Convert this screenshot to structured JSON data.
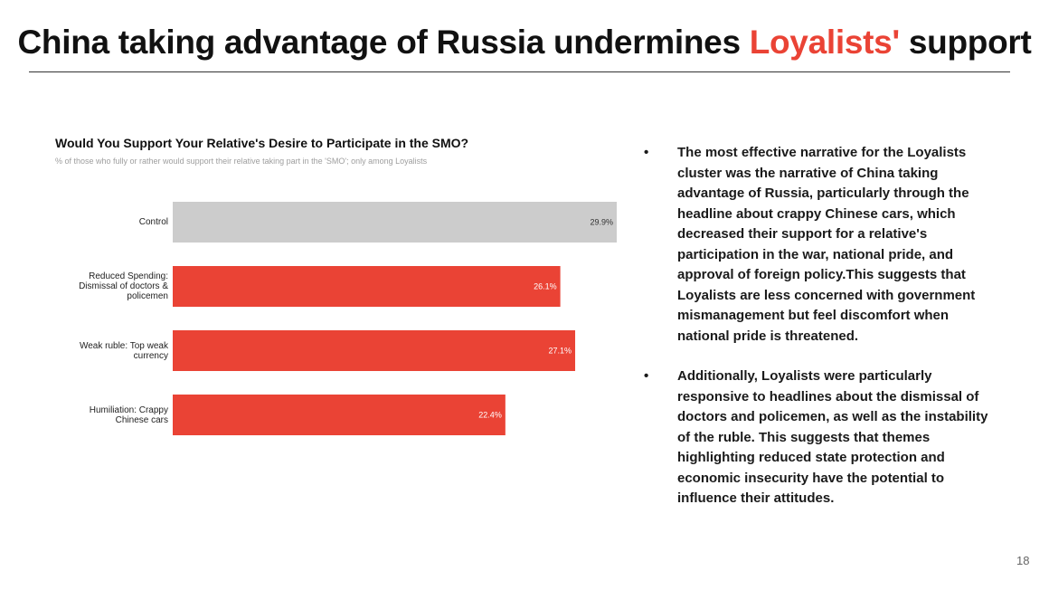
{
  "slide": {
    "title_prefix": "China taking advantage of Russia undermines ",
    "title_highlight": "Loyalists'",
    "title_suffix": " support",
    "page_number": "18",
    "bullets": [
      "The most effective narrative for the Loyalists cluster was the narrative of China taking advantage of Russia, particularly through the headline about crappy Chinese cars, which decreased their support for a relative's participation in the war, national pride, and approval of foreign policy.This suggests that Loyalists are less concerned with government mismanagement but feel discomfort when national pride is threatened.",
      "Additionally, Loyalists were particularly responsive to headlines about the dismissal of doctors and policemen, as well as the instability of the ruble. This suggests that themes highlighting reduced state protection and economic insecurity have the potential to influence their attitudes."
    ]
  },
  "colors": {
    "accent": "#ea4335",
    "control_bar": "#cccccc",
    "treatment_bar": "#ea4335"
  },
  "chart_data": {
    "type": "bar",
    "orientation": "horizontal",
    "title": "Would You Support Your Relative's Desire to Participate in the SMO?",
    "subtitle": "% of those who fully or rather would support their relative taking part in the 'SMO'; only among Loyalists",
    "categories": [
      "Control",
      "Reduced Spending: Dismissal of doctors & policemen",
      "Weak ruble: Top weak currency",
      "Humiliation: Crappy Chinese cars"
    ],
    "category_lines": [
      [
        "Control"
      ],
      [
        "Reduced Spending:",
        "Dismissal of doctors &",
        "policemen"
      ],
      [
        "Weak ruble: Top weak",
        "currency"
      ],
      [
        "Humiliation: Crappy",
        "Chinese cars"
      ]
    ],
    "values": [
      29.9,
      26.1,
      27.1,
      22.4
    ],
    "data_labels": [
      "29.9%",
      "26.1%",
      "27.1%",
      "22.4%"
    ],
    "xlim": [
      0,
      29.9
    ],
    "xlabel": "",
    "ylabel": "",
    "grid": false,
    "legend": "none"
  }
}
